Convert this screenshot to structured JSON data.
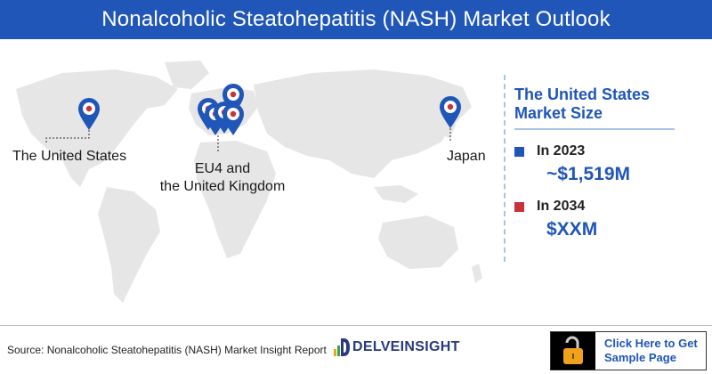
{
  "header": {
    "title": "Nonalcoholic Steatohepatitis (NASH) Market Outlook"
  },
  "map": {
    "labels": {
      "us": "The United States",
      "eu_line1": "EU4 and",
      "eu_line2": "the United Kingdom",
      "japan": "Japan"
    },
    "map_color": "#e6e6e6",
    "pin_color": "#1f56b8",
    "pin_dot_color": "#c8333b"
  },
  "panel": {
    "title_line1": "The United States",
    "title_line2": "Market Size",
    "rows": [
      {
        "year": "In 2023",
        "value": "~$1,519M",
        "color": "#1f56b8"
      },
      {
        "year": "In 2034",
        "value": "$XXM",
        "color": "#c8333b"
      }
    ]
  },
  "footer": {
    "source": "Source: Nonalcoholic Steatohepatitis (NASH) Market Insight Report",
    "logo_text": "DELVEINSIGHT",
    "cta_line1": "Click Here to Get",
    "cta_line2": "Sample Page",
    "cta_icon": "unlock-icon"
  }
}
